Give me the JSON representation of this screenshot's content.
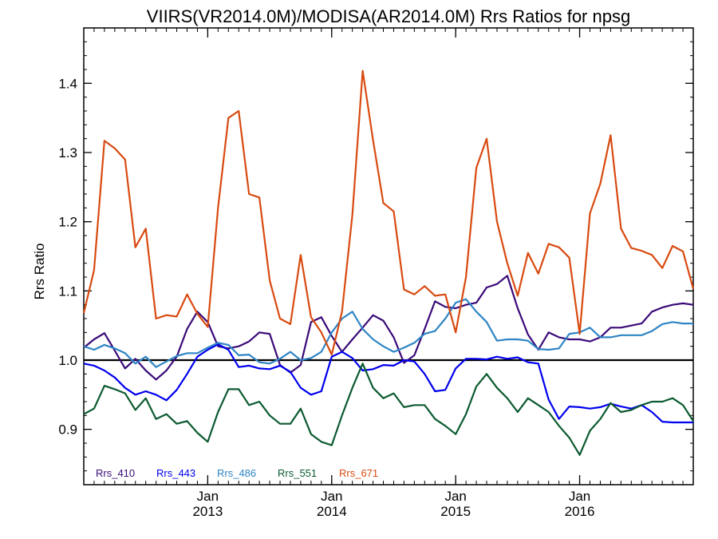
{
  "chart_data": {
    "type": "line",
    "title": "VIIRS(VR2014.0M)/MODISA(AR2014.0M)  Rrs Ratios for npsg",
    "ylabel": "Rrs Ratio",
    "xlabel": "",
    "ylim": [
      0.82,
      1.48
    ],
    "y_ticks": [
      "0.9",
      "1.0",
      "1.1",
      "1.2",
      "1.3",
      "1.4"
    ],
    "y_tick_values": [
      0.9,
      1.0,
      1.1,
      1.2,
      1.3,
      1.4
    ],
    "x_start": "2012-01",
    "x_end": "2016-12",
    "x_ticks": [
      {
        "date": "2013-01",
        "month": "Jan",
        "year": "2013"
      },
      {
        "date": "2014-01",
        "month": "Jan",
        "year": "2014"
      },
      {
        "date": "2015-01",
        "month": "Jan",
        "year": "2015"
      },
      {
        "date": "2016-01",
        "month": "Jan",
        "year": "2016"
      }
    ],
    "reference_line": 1.0,
    "grid": false,
    "legend_position": "bottom-left",
    "x": [
      "2012-01",
      "2012-02",
      "2012-03",
      "2012-04",
      "2012-05",
      "2012-06",
      "2012-07",
      "2012-08",
      "2012-09",
      "2012-10",
      "2012-11",
      "2012-12",
      "2013-01",
      "2013-02",
      "2013-03",
      "2013-04",
      "2013-05",
      "2013-06",
      "2013-07",
      "2013-08",
      "2013-09",
      "2013-10",
      "2013-11",
      "2013-12",
      "2014-01",
      "2014-02",
      "2014-03",
      "2014-04",
      "2014-05",
      "2014-06",
      "2014-07",
      "2014-08",
      "2014-09",
      "2014-10",
      "2014-11",
      "2014-12",
      "2015-01",
      "2015-02",
      "2015-03",
      "2015-04",
      "2015-05",
      "2015-06",
      "2015-07",
      "2015-08",
      "2015-09",
      "2015-10",
      "2015-11",
      "2015-12",
      "2016-01",
      "2016-02",
      "2016-03",
      "2016-04",
      "2016-05",
      "2016-06",
      "2016-07",
      "2016-08",
      "2016-09",
      "2016-10",
      "2016-11",
      "2016-12"
    ],
    "series": [
      {
        "name": "Rrs_410",
        "color": "#3a0a78",
        "values": [
          1.018,
          1.03,
          1.039,
          1.014,
          0.988,
          1.002,
          0.985,
          0.972,
          0.985,
          1.005,
          1.045,
          1.07,
          1.055,
          1.02,
          1.017,
          1.02,
          1.027,
          1.04,
          1.038,
          0.993,
          0.982,
          0.993,
          1.055,
          1.062,
          1.035,
          1.012,
          1.03,
          1.047,
          1.065,
          1.057,
          1.033,
          0.996,
          1.007,
          1.045,
          1.085,
          1.077,
          1.075,
          1.08,
          1.083,
          1.105,
          1.11,
          1.122,
          1.075,
          1.037,
          1.015,
          1.04,
          1.033,
          1.03,
          1.03,
          1.027,
          1.033,
          1.047,
          1.047,
          1.05,
          1.053,
          1.07,
          1.076,
          1.08,
          1.082,
          1.08
        ]
      },
      {
        "name": "Rrs_443",
        "color": "#0000ee",
        "values": [
          0.995,
          0.992,
          0.985,
          0.975,
          0.96,
          0.95,
          0.955,
          0.95,
          0.942,
          0.957,
          0.98,
          1.005,
          1.015,
          1.023,
          1.015,
          0.99,
          0.992,
          0.988,
          0.987,
          0.992,
          0.983,
          0.96,
          0.95,
          0.955,
          1.005,
          1.012,
          1.003,
          0.985,
          0.987,
          0.993,
          0.992,
          1.0,
          0.998,
          0.98,
          0.955,
          0.957,
          0.988,
          1.002,
          1.002,
          1.001,
          1.005,
          1.002,
          1.004,
          0.997,
          0.995,
          0.943,
          0.915,
          0.933,
          0.932,
          0.93,
          0.932,
          0.937,
          0.933,
          0.93,
          0.935,
          0.925,
          0.911,
          0.91,
          0.91,
          0.91
        ]
      },
      {
        "name": "Rrs_486",
        "color": "#2f85c5",
        "values": [
          1.02,
          1.015,
          1.022,
          1.017,
          1.01,
          0.995,
          1.005,
          0.99,
          0.998,
          1.006,
          1.01,
          1.01,
          1.018,
          1.025,
          1.022,
          1.007,
          1.008,
          0.997,
          0.995,
          1.002,
          1.012,
          1.0,
          1.003,
          1.012,
          1.04,
          1.06,
          1.07,
          1.045,
          1.03,
          1.02,
          1.012,
          1.018,
          1.025,
          1.038,
          1.042,
          1.06,
          1.083,
          1.088,
          1.07,
          1.055,
          1.028,
          1.03,
          1.03,
          1.028,
          1.016,
          1.015,
          1.017,
          1.038,
          1.04,
          1.047,
          1.033,
          1.033,
          1.036,
          1.036,
          1.036,
          1.042,
          1.052,
          1.055,
          1.053,
          1.053
        ]
      },
      {
        "name": "Rrs_551",
        "color": "#0b5a30",
        "values": [
          0.922,
          0.93,
          0.963,
          0.958,
          0.952,
          0.928,
          0.945,
          0.915,
          0.922,
          0.908,
          0.912,
          0.895,
          0.882,
          0.925,
          0.958,
          0.958,
          0.935,
          0.94,
          0.92,
          0.908,
          0.908,
          0.93,
          0.893,
          0.882,
          0.877,
          0.92,
          0.96,
          0.995,
          0.96,
          0.945,
          0.952,
          0.932,
          0.935,
          0.935,
          0.915,
          0.905,
          0.893,
          0.922,
          0.962,
          0.98,
          0.96,
          0.945,
          0.925,
          0.945,
          0.935,
          0.925,
          0.905,
          0.888,
          0.863,
          0.898,
          0.915,
          0.938,
          0.925,
          0.928,
          0.935,
          0.94,
          0.94,
          0.945,
          0.935,
          0.912
        ]
      },
      {
        "name": "Rrs_671",
        "color": "#d84a10",
        "values": [
          1.068,
          1.13,
          1.317,
          1.306,
          1.29,
          1.163,
          1.19,
          1.06,
          1.065,
          1.063,
          1.095,
          1.067,
          1.048,
          1.22,
          1.35,
          1.36,
          1.24,
          1.235,
          1.115,
          1.06,
          1.052,
          1.152,
          1.062,
          1.04,
          1.008,
          1.07,
          1.21,
          1.418,
          1.318,
          1.227,
          1.215,
          1.102,
          1.095,
          1.107,
          1.093,
          1.095,
          1.04,
          1.12,
          1.278,
          1.32,
          1.2,
          1.14,
          1.093,
          1.155,
          1.125,
          1.168,
          1.163,
          1.148,
          1.038,
          1.212,
          1.255,
          1.325,
          1.19,
          1.162,
          1.158,
          1.152,
          1.133,
          1.165,
          1.157,
          1.103
        ]
      }
    ]
  }
}
